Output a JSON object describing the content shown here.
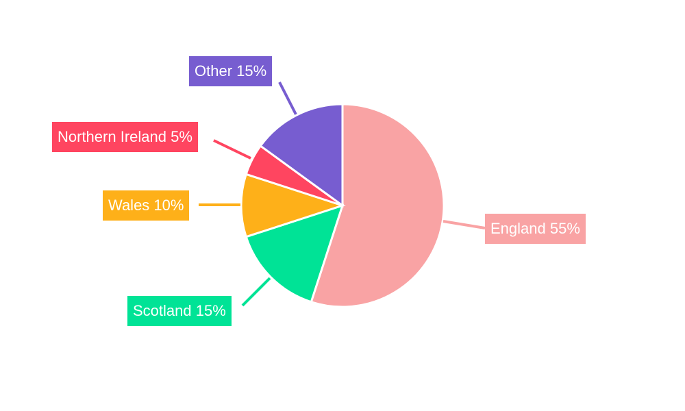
{
  "chart_data": {
    "type": "pie",
    "categories": [
      "England",
      "Scotland",
      "Wales",
      "Northern Ireland",
      "Other"
    ],
    "values": [
      55,
      15,
      10,
      5,
      15
    ],
    "labels": [
      "England 55%",
      "Scotland 15%",
      "Wales 10%",
      "Northern Ireland 5%",
      "Other 15%"
    ],
    "colors": [
      "#F9A3A4",
      "#00E396",
      "#FEB019",
      "#FF4560",
      "#775DD0"
    ],
    "start_angle": "top",
    "direction": "clockwise",
    "legend": "none"
  }
}
